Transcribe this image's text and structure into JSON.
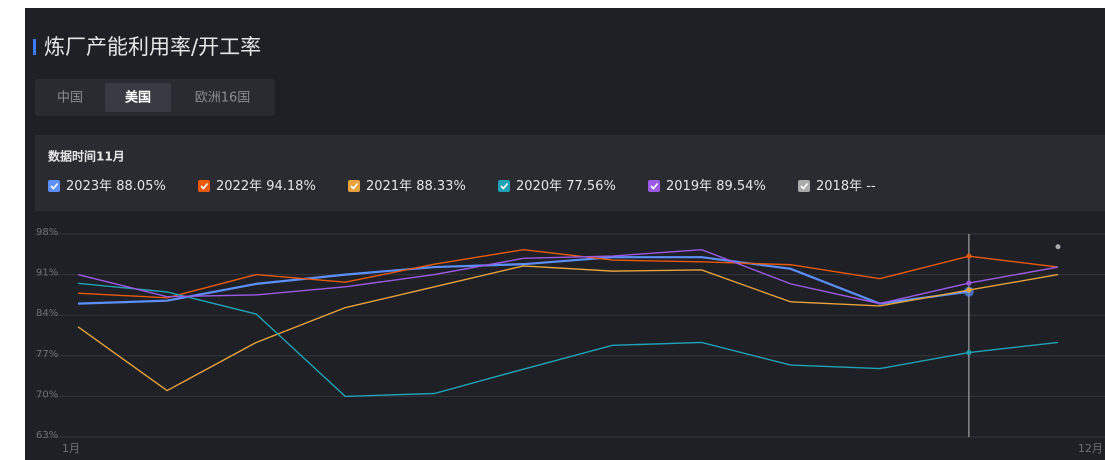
{
  "header": {
    "title": "炼厂产能利用率/开工率"
  },
  "tabs": [
    "中国",
    "美国",
    "欧洲16国"
  ],
  "active_tab": 1,
  "data_time": "数据时间11月",
  "chart_data": {
    "type": "line",
    "categories": [
      "1月",
      null,
      null,
      null,
      null,
      null,
      null,
      null,
      null,
      null,
      null,
      "12月"
    ],
    "ylim": [
      63,
      98
    ],
    "yticks": [
      {
        "value": 63,
        "label": "63%"
      },
      {
        "value": 70,
        "label": "70%"
      },
      {
        "value": 77,
        "label": "77%"
      },
      {
        "value": 84,
        "label": "84%"
      },
      {
        "value": 91,
        "label": "91%"
      },
      {
        "value": 98,
        "label": "98%"
      }
    ],
    "grid": true,
    "series": [
      {
        "name": "2023年",
        "legend_label": "88.05%",
        "color": "#5b8ff9",
        "values": [
          86.0,
          86.5,
          89.4,
          91.0,
          92.3,
          92.8,
          94.0,
          94.0,
          92.0,
          86.0,
          88.05,
          null
        ]
      },
      {
        "name": "2022年",
        "legend_label": "94.18%",
        "color": "#e8590c",
        "values": [
          87.8,
          87.0,
          91.0,
          89.7,
          92.8,
          95.3,
          93.5,
          93.2,
          92.7,
          90.3,
          94.18,
          92.3
        ]
      },
      {
        "name": "2021年",
        "legend_label": "88.33%",
        "color": "#e6a23c",
        "values": [
          82.0,
          71.0,
          79.3,
          85.3,
          88.9,
          92.5,
          91.6,
          91.8,
          86.3,
          85.6,
          88.33,
          91.0
        ]
      },
      {
        "name": "2020年",
        "legend_label": "77.56%",
        "color": "#1fa2b5",
        "values": [
          89.5,
          88.0,
          84.2,
          70.0,
          70.5,
          74.7,
          78.8,
          79.3,
          75.4,
          74.8,
          77.56,
          79.3
        ]
      },
      {
        "name": "2019年",
        "legend_label": "89.54%",
        "color": "#9b59e6",
        "values": [
          91.0,
          87.2,
          87.5,
          88.9,
          91.0,
          93.8,
          94.2,
          95.3,
          89.4,
          86.0,
          89.54,
          92.3
        ]
      },
      {
        "name": "2018年",
        "legend_label": "--",
        "color": "#aaaaaa",
        "values": [
          null,
          null,
          null,
          null,
          null,
          null,
          null,
          null,
          null,
          null,
          null,
          95.8
        ]
      }
    ]
  }
}
